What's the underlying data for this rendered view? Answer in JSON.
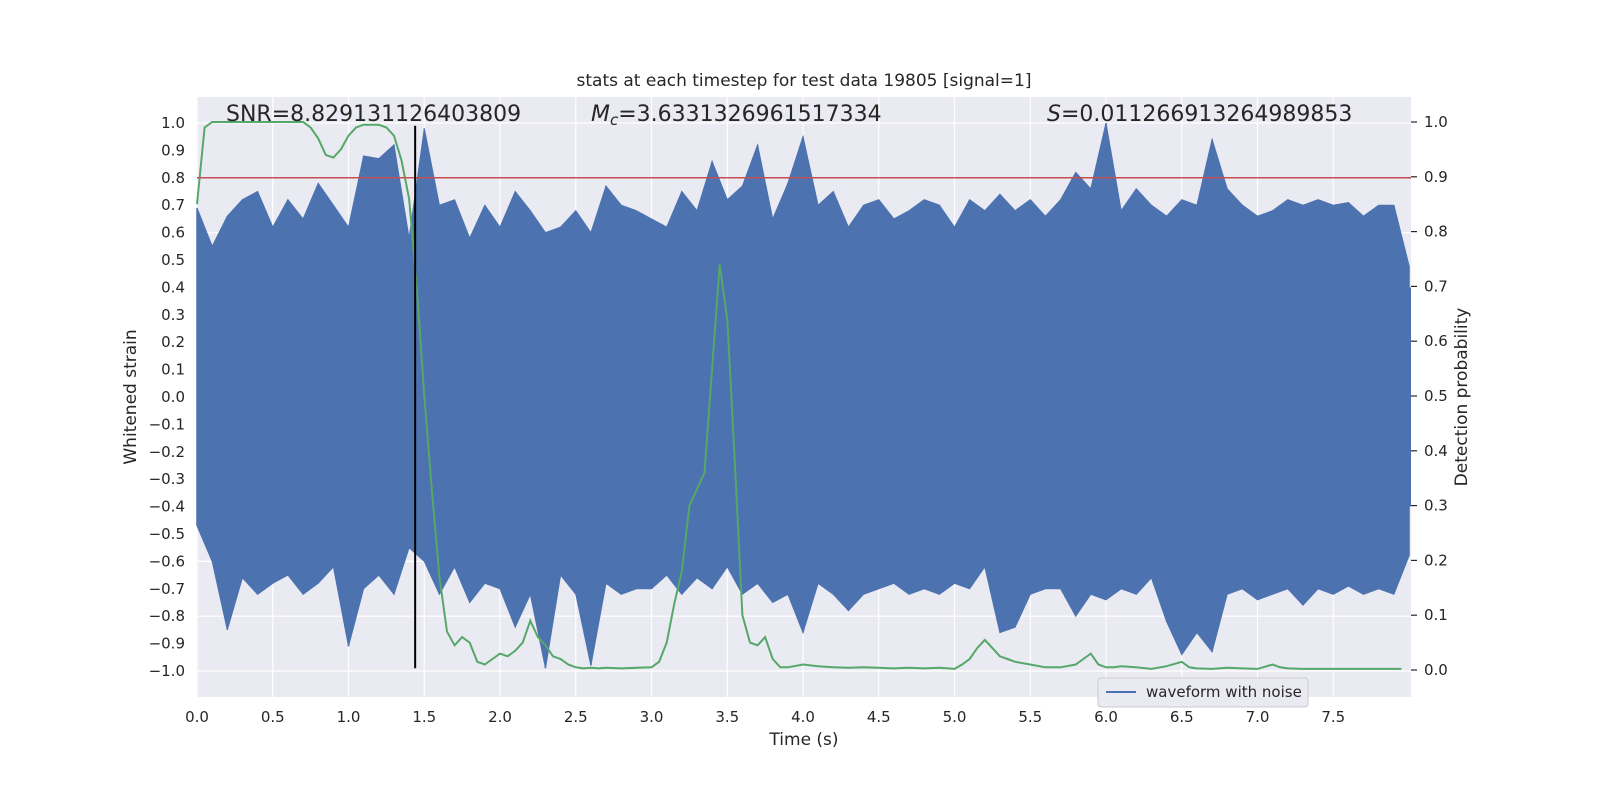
{
  "chart_data": {
    "type": "line",
    "title": "stats at each timestep for test data 19805 [signal=1]",
    "xlabel": "Time (s)",
    "ylabel": "Whitened strain",
    "y2label": "Detection probability",
    "xlim": [
      0.0,
      8.0
    ],
    "ylim": [
      -1.1,
      1.1
    ],
    "y2lim": [
      -0.04,
      1.04
    ],
    "xticks": [
      "0.0",
      "0.5",
      "1.0",
      "1.5",
      "2.0",
      "2.5",
      "3.0",
      "3.5",
      "4.0",
      "4.5",
      "5.0",
      "5.5",
      "6.0",
      "6.5",
      "7.0",
      "7.5"
    ],
    "yticks": [
      "1.0",
      "0.9",
      "0.8",
      "0.7",
      "0.6",
      "0.5",
      "0.4",
      "0.3",
      "0.2",
      "0.1",
      "0.0",
      "−0.1",
      "−0.2",
      "−0.3",
      "−0.4",
      "−0.5",
      "−0.6",
      "−0.7",
      "−0.8",
      "−0.9",
      "−1.0"
    ],
    "y2ticks": [
      "1.0",
      "0.9",
      "0.8",
      "0.7",
      "0.6",
      "0.5",
      "0.4",
      "0.3",
      "0.2",
      "0.1",
      "0.0"
    ],
    "grid": true,
    "legend": {
      "position": "lower center-right",
      "entries": [
        "waveform with noise"
      ]
    },
    "annotations": {
      "snr_label": "SNR=8.829131126403809",
      "mc_label_base": "M",
      "mc_label_sub": "c",
      "mc_label_rest": "=3.6331326961517334",
      "s_label_base": "S",
      "s_label_rest": "=0.011266913264989853"
    },
    "threshold_line": {
      "y": 0.8,
      "color": "#c44e52"
    },
    "vertical_marker": {
      "x": 1.44,
      "y_range": [
        -0.99,
        0.99
      ],
      "color": "#000000"
    },
    "colors": {
      "waveform": "#4c72b0",
      "probability": "#55a868",
      "background": "#eaeaf2"
    },
    "waveform_envelope": {
      "note_values": "max/min strain envelope sampled along time",
      "x": [
        0.0,
        0.1,
        0.2,
        0.3,
        0.4,
        0.5,
        0.6,
        0.7,
        0.8,
        0.9,
        1.0,
        1.1,
        1.2,
        1.3,
        1.4,
        1.5,
        1.6,
        1.7,
        1.8,
        1.9,
        2.0,
        2.1,
        2.2,
        2.3,
        2.4,
        2.5,
        2.6,
        2.7,
        2.8,
        2.9,
        3.0,
        3.1,
        3.2,
        3.3,
        3.4,
        3.5,
        3.6,
        3.7,
        3.8,
        3.9,
        4.0,
        4.1,
        4.2,
        4.3,
        4.4,
        4.5,
        4.6,
        4.7,
        4.8,
        4.9,
        5.0,
        5.1,
        5.2,
        5.3,
        5.4,
        5.5,
        5.6,
        5.7,
        5.8,
        5.9,
        6.0,
        6.1,
        6.2,
        6.3,
        6.4,
        6.5,
        6.6,
        6.7,
        6.8,
        6.9,
        7.0,
        7.1,
        7.2,
        7.3,
        7.4,
        7.5,
        7.6,
        7.7,
        7.8,
        7.9,
        8.0
      ],
      "max": [
        0.69,
        0.55,
        0.66,
        0.72,
        0.75,
        0.62,
        0.72,
        0.65,
        0.78,
        0.7,
        0.62,
        0.88,
        0.87,
        0.92,
        0.58,
        0.98,
        0.7,
        0.72,
        0.58,
        0.7,
        0.62,
        0.75,
        0.68,
        0.6,
        0.62,
        0.68,
        0.6,
        0.77,
        0.7,
        0.68,
        0.65,
        0.62,
        0.75,
        0.68,
        0.86,
        0.72,
        0.77,
        0.92,
        0.65,
        0.78,
        0.95,
        0.7,
        0.75,
        0.62,
        0.7,
        0.72,
        0.65,
        0.68,
        0.72,
        0.7,
        0.62,
        0.72,
        0.68,
        0.74,
        0.68,
        0.72,
        0.66,
        0.72,
        0.82,
        0.76,
        1.0,
        0.68,
        0.76,
        0.7,
        0.66,
        0.72,
        0.7,
        0.94,
        0.76,
        0.7,
        0.66,
        0.68,
        0.72,
        0.7,
        0.72,
        0.7,
        0.71,
        0.66,
        0.7,
        0.7,
        0.48
      ],
      "min": [
        -0.47,
        -0.6,
        -0.85,
        -0.66,
        -0.72,
        -0.68,
        -0.65,
        -0.72,
        -0.68,
        -0.62,
        -0.91,
        -0.7,
        -0.65,
        -0.72,
        -0.55,
        -0.6,
        -0.72,
        -0.62,
        -0.75,
        -0.68,
        -0.7,
        -0.84,
        -0.72,
        -0.99,
        -0.65,
        -0.72,
        -0.98,
        -0.68,
        -0.72,
        -0.7,
        -0.7,
        -0.65,
        -0.72,
        -0.66,
        -0.7,
        -0.62,
        -0.72,
        -0.68,
        -0.75,
        -0.72,
        -0.86,
        -0.68,
        -0.72,
        -0.78,
        -0.72,
        -0.7,
        -0.68,
        -0.72,
        -0.7,
        -0.72,
        -0.68,
        -0.7,
        -0.62,
        -0.86,
        -0.84,
        -0.72,
        -0.7,
        -0.7,
        -0.8,
        -0.72,
        -0.74,
        -0.7,
        -0.72,
        -0.66,
        -0.82,
        -0.94,
        -0.86,
        -0.93,
        -0.72,
        -0.7,
        -0.74,
        -0.72,
        -0.7,
        -0.76,
        -0.7,
        -0.72,
        -0.69,
        -0.72,
        -0.7,
        -0.72,
        -0.58
      ]
    },
    "series": [
      {
        "name": "",
        "axis": "right",
        "x": [
          0.0,
          0.05,
          0.1,
          0.2,
          0.3,
          0.4,
          0.5,
          0.6,
          0.7,
          0.75,
          0.8,
          0.85,
          0.9,
          0.95,
          1.0,
          1.05,
          1.1,
          1.15,
          1.2,
          1.25,
          1.3,
          1.35,
          1.4,
          1.45,
          1.5,
          1.55,
          1.6,
          1.65,
          1.7,
          1.75,
          1.8,
          1.85,
          1.9,
          1.95,
          2.0,
          2.05,
          2.1,
          2.15,
          2.2,
          2.25,
          2.3,
          2.35,
          2.4,
          2.45,
          2.5,
          2.55,
          2.6,
          2.65,
          2.7,
          2.8,
          2.9,
          3.0,
          3.05,
          3.1,
          3.15,
          3.2,
          3.25,
          3.3,
          3.35,
          3.4,
          3.45,
          3.5,
          3.55,
          3.6,
          3.65,
          3.7,
          3.75,
          3.8,
          3.85,
          3.9,
          4.0,
          4.1,
          4.2,
          4.3,
          4.4,
          4.5,
          4.6,
          4.7,
          4.8,
          4.9,
          5.0,
          5.05,
          5.1,
          5.15,
          5.2,
          5.25,
          5.3,
          5.35,
          5.4,
          5.5,
          5.6,
          5.7,
          5.8,
          5.85,
          5.9,
          5.95,
          6.0,
          6.05,
          6.1,
          6.2,
          6.3,
          6.4,
          6.5,
          6.55,
          6.6,
          6.7,
          6.8,
          6.9,
          7.0,
          7.1,
          7.15,
          7.2,
          7.3,
          7.5,
          7.7,
          7.9,
          7.95
        ],
        "values": [
          0.85,
          0.99,
          1.0,
          1.0,
          1.0,
          1.0,
          1.0,
          1.0,
          1.0,
          0.99,
          0.97,
          0.94,
          0.935,
          0.95,
          0.975,
          0.99,
          0.995,
          0.995,
          0.995,
          0.99,
          0.975,
          0.93,
          0.86,
          0.7,
          0.5,
          0.33,
          0.17,
          0.07,
          0.045,
          0.06,
          0.05,
          0.015,
          0.01,
          0.02,
          0.03,
          0.025,
          0.035,
          0.05,
          0.09,
          0.06,
          0.045,
          0.025,
          0.02,
          0.01,
          0.005,
          0.003,
          0.004,
          0.003,
          0.004,
          0.003,
          0.004,
          0.005,
          0.015,
          0.05,
          0.12,
          0.18,
          0.3,
          0.33,
          0.36,
          0.55,
          0.74,
          0.64,
          0.38,
          0.1,
          0.05,
          0.045,
          0.06,
          0.02,
          0.005,
          0.005,
          0.01,
          0.007,
          0.005,
          0.004,
          0.005,
          0.004,
          0.003,
          0.004,
          0.003,
          0.004,
          0.002,
          0.01,
          0.02,
          0.04,
          0.055,
          0.04,
          0.025,
          0.02,
          0.015,
          0.01,
          0.005,
          0.005,
          0.01,
          0.02,
          0.03,
          0.01,
          0.005,
          0.005,
          0.007,
          0.005,
          0.002,
          0.007,
          0.015,
          0.005,
          0.003,
          0.002,
          0.004,
          0.003,
          0.002,
          0.01,
          0.005,
          0.003,
          0.002,
          0.002,
          0.002,
          0.002,
          0.002
        ]
      }
    ]
  }
}
